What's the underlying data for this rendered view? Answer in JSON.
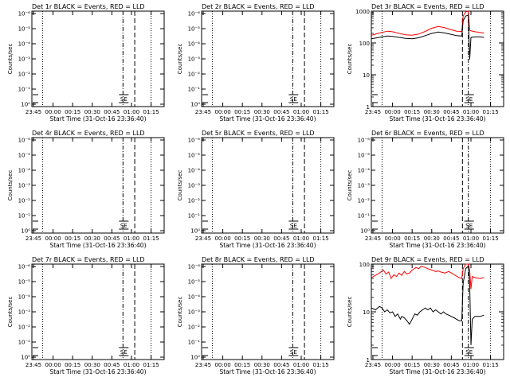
{
  "figure": {
    "xlabel": "Start Time (31-Oct-16 23:36:40)",
    "ylabel": "Counts/sec",
    "x_ticks": [
      "23:45",
      "00:00",
      "00:15",
      "00:30",
      "00:45",
      "01:00",
      "01:15"
    ],
    "colors": {
      "events": "#000000",
      "lld": "#ff0000",
      "axes": "#000000"
    }
  },
  "chart_data": [
    {
      "type": "line",
      "title": "Det 1r BLACK = Events, RED = LLD",
      "scale": "log",
      "exp_ticks": true,
      "ylim": [
        0.9,
        0.00011
      ],
      "ytick_labels": [
        "10⁰",
        "10⁻¹",
        "10⁻²",
        "10⁻³",
        "10⁻⁴",
        "10⁻⁵",
        "10⁻⁶"
      ],
      "xlim_min": [
        -1.2,
        100
      ],
      "dotted_x_min": [
        7,
        90
      ],
      "dashdot_x_min": [
        68.5
      ],
      "dashed_x_min": [
        77.5
      ],
      "series": [],
      "marker_label": "SE"
    },
    {
      "type": "line",
      "title": "Det 2r BLACK = Events, RED = LLD",
      "scale": "log",
      "exp_ticks": true,
      "ylim": [
        0.9,
        0.00011
      ],
      "ytick_labels": [
        "10⁰",
        "10⁻¹",
        "10⁻²",
        "10⁻³",
        "10⁻⁴",
        "10⁻⁵",
        "10⁻⁶"
      ],
      "xlim_min": [
        -1.2,
        100
      ],
      "dotted_x_min": [
        7,
        90
      ],
      "dashdot_x_min": [
        68.5
      ],
      "dashed_x_min": [
        77.5
      ],
      "series": [],
      "marker_label": "SE"
    },
    {
      "type": "line",
      "title": "Det 3r BLACK = Events, RED = LLD",
      "scale": "log",
      "exp_ticks": false,
      "ylim": [
        1,
        1000
      ],
      "ytick_labels": [
        "1",
        "10",
        "100",
        "1000"
      ],
      "xlim_min": [
        -1.2,
        100
      ],
      "dotted_x_min": [
        7,
        90
      ],
      "dashdot_x_min": [
        73
      ],
      "dashed_x_min": [
        68.5
      ],
      "series": [
        {
          "name": "LLD",
          "color": "#ff0000",
          "points": [
            [
              -1,
              175
            ],
            [
              3,
              195
            ],
            [
              7,
              215
            ],
            [
              11,
              235
            ],
            [
              15,
              225
            ],
            [
              20,
              200
            ],
            [
              25,
              180
            ],
            [
              30,
              175
            ],
            [
              35,
              190
            ],
            [
              40,
              230
            ],
            [
              45,
              290
            ],
            [
              50,
              330
            ],
            [
              55,
              300
            ],
            [
              60,
              260
            ],
            [
              64,
              235
            ],
            [
              68,
              230
            ],
            [
              69,
              700
            ],
            [
              71,
              950
            ],
            [
              73,
              1000
            ],
            [
              74,
              250
            ],
            [
              75,
              240
            ],
            [
              78,
              225
            ],
            [
              82,
              215
            ],
            [
              85,
              205
            ]
          ]
        },
        {
          "name": "Events",
          "color": "#000000",
          "points": [
            [
              -1,
              135
            ],
            [
              3,
              145
            ],
            [
              7,
              155
            ],
            [
              11,
              165
            ],
            [
              15,
              160
            ],
            [
              20,
              150
            ],
            [
              25,
              140
            ],
            [
              30,
              135
            ],
            [
              35,
              145
            ],
            [
              40,
              170
            ],
            [
              45,
              200
            ],
            [
              50,
              220
            ],
            [
              55,
              205
            ],
            [
              60,
              185
            ],
            [
              64,
              170
            ],
            [
              68,
              165
            ],
            [
              69,
              500
            ],
            [
              71,
              700
            ],
            [
              73,
              750
            ],
            [
              74,
              30
            ],
            [
              75,
              150
            ],
            [
              78,
              155
            ],
            [
              82,
              155
            ],
            [
              85,
              150
            ]
          ]
        }
      ],
      "marker_label": "SE"
    },
    {
      "type": "line",
      "title": "Det 4r BLACK = Events, RED = LLD",
      "scale": "log",
      "exp_ticks": true,
      "ylim": [
        0.9,
        0.00011
      ],
      "ytick_labels": [
        "10⁰",
        "10⁻¹",
        "10⁻²",
        "10⁻³",
        "10⁻⁴",
        "10⁻⁵",
        "10⁻⁶"
      ],
      "xlim_min": [
        -1.2,
        100
      ],
      "dotted_x_min": [
        7,
        90
      ],
      "dashdot_x_min": [
        68.5
      ],
      "dashed_x_min": [
        77.5
      ],
      "series": [],
      "marker_label": "SE"
    },
    {
      "type": "line",
      "title": "Det 5r BLACK = Events, RED = LLD",
      "scale": "log",
      "exp_ticks": true,
      "ylim": [
        0.9,
        0.00011
      ],
      "ytick_labels": [
        "10⁰",
        "10⁻¹",
        "10⁻²",
        "10⁻³",
        "10⁻⁴",
        "10⁻⁵",
        "10⁻⁶"
      ],
      "xlim_min": [
        -1.2,
        100
      ],
      "dotted_x_min": [
        7,
        90
      ],
      "dashdot_x_min": [
        68.5
      ],
      "dashed_x_min": [
        77.5
      ],
      "series": [],
      "marker_label": "SE"
    },
    {
      "type": "line",
      "title": "Det 6r BLACK = Events, RED = LLD",
      "scale": "log",
      "exp_ticks": true,
      "ylim": [
        0.9,
        0.00011
      ],
      "ytick_labels": [
        "10⁰",
        "10⁻¹",
        "10⁻²",
        "10⁻³",
        "10⁻⁴",
        "10⁻⁵",
        "10⁻⁶"
      ],
      "xlim_min": [
        -1.2,
        100
      ],
      "dotted_x_min": [
        7,
        90
      ],
      "dashdot_x_min": [
        73
      ],
      "dashed_x_min": [
        68.5
      ],
      "series": [],
      "marker_label": "SE"
    },
    {
      "type": "line",
      "title": "Det 7r BLACK = Events, RED = LLD",
      "scale": "log",
      "exp_ticks": true,
      "ylim": [
        0.9,
        0.00011
      ],
      "ytick_labels": [
        "10⁰",
        "10⁻¹",
        "10⁻²",
        "10⁻³",
        "10⁻⁴",
        "10⁻⁵",
        "10⁻⁶"
      ],
      "xlim_min": [
        -1.2,
        100
      ],
      "dotted_x_min": [
        7,
        90
      ],
      "dashdot_x_min": [
        68.5
      ],
      "dashed_x_min": [
        77.5
      ],
      "series": [],
      "marker_label": "SE"
    },
    {
      "type": "line",
      "title": "Det 8r BLACK = Events, RED = LLD",
      "scale": "log",
      "exp_ticks": true,
      "ylim": [
        0.9,
        0.00011
      ],
      "ytick_labels": [
        "10⁰",
        "10⁻¹",
        "10⁻²",
        "10⁻³",
        "10⁻⁴",
        "10⁻⁵",
        "10⁻⁶"
      ],
      "xlim_min": [
        -1.2,
        100
      ],
      "dotted_x_min": [
        7,
        90
      ],
      "dashdot_x_min": [
        68.5
      ],
      "dashed_x_min": [
        77.5
      ],
      "series": [],
      "marker_label": "SE"
    },
    {
      "type": "line",
      "title": "Det 9r BLACK = Events, RED = LLD",
      "scale": "log",
      "exp_ticks": false,
      "ylim": [
        1,
        100
      ],
      "ytick_labels": [
        "1",
        "10",
        "100"
      ],
      "xlim_min": [
        -1.2,
        100
      ],
      "dotted_x_min": [
        7,
        90
      ],
      "dashdot_x_min": [
        73
      ],
      "dashed_x_min": [
        68.5
      ],
      "series": [
        {
          "name": "LLD",
          "color": "#ff0000",
          "points": [
            [
              -1,
              52
            ],
            [
              2,
              58
            ],
            [
              5,
              65
            ],
            [
              8,
              75
            ],
            [
              10,
              62
            ],
            [
              12,
              68
            ],
            [
              14,
              50
            ],
            [
              16,
              60
            ],
            [
              18,
              55
            ],
            [
              20,
              65
            ],
            [
              22,
              58
            ],
            [
              24,
              70
            ],
            [
              26,
              62
            ],
            [
              28,
              65
            ],
            [
              30,
              75
            ],
            [
              33,
              85
            ],
            [
              35,
              80
            ],
            [
              37,
              90
            ],
            [
              40,
              85
            ],
            [
              42,
              80
            ],
            [
              45,
              75
            ],
            [
              48,
              70
            ],
            [
              50,
              72
            ],
            [
              52,
              68
            ],
            [
              55,
              65
            ],
            [
              58,
              70
            ],
            [
              60,
              65
            ],
            [
              63,
              58
            ],
            [
              66,
              52
            ],
            [
              68,
              50
            ],
            [
              69,
              80
            ],
            [
              71,
              100
            ],
            [
              73,
              100
            ],
            [
              74,
              75
            ],
            [
              75,
              30
            ],
            [
              76,
              55
            ],
            [
              78,
              52
            ],
            [
              82,
              50
            ],
            [
              85,
              52
            ]
          ]
        },
        {
          "name": "Events",
          "color": "#000000",
          "points": [
            [
              -1,
              12
            ],
            [
              2,
              11
            ],
            [
              5,
              13
            ],
            [
              7,
              12
            ],
            [
              9,
              10
            ],
            [
              11,
              11
            ],
            [
              13,
              9.5
            ],
            [
              15,
              10
            ],
            [
              17,
              8
            ],
            [
              19,
              9
            ],
            [
              21,
              7
            ],
            [
              22,
              8
            ],
            [
              24,
              7.5
            ],
            [
              26,
              6.5
            ],
            [
              28,
              5.5
            ],
            [
              30,
              7
            ],
            [
              32,
              9
            ],
            [
              34,
              8.5
            ],
            [
              36,
              10
            ],
            [
              38,
              11
            ],
            [
              40,
              12
            ],
            [
              42,
              11
            ],
            [
              44,
              12
            ],
            [
              46,
              10
            ],
            [
              48,
              11
            ],
            [
              50,
              10
            ],
            [
              52,
              9
            ],
            [
              54,
              10
            ],
            [
              56,
              9
            ],
            [
              58,
              8.5
            ],
            [
              60,
              8
            ],
            [
              62,
              7.5
            ],
            [
              64,
              7
            ],
            [
              66,
              6.5
            ],
            [
              68,
              6.5
            ],
            [
              69,
              40
            ],
            [
              71,
              80
            ],
            [
              73,
              90
            ],
            [
              74,
              40
            ],
            [
              75,
              2
            ],
            [
              76,
              7
            ],
            [
              78,
              8
            ],
            [
              82,
              8
            ],
            [
              85,
              8.5
            ]
          ]
        }
      ],
      "marker_label": "SE"
    }
  ]
}
